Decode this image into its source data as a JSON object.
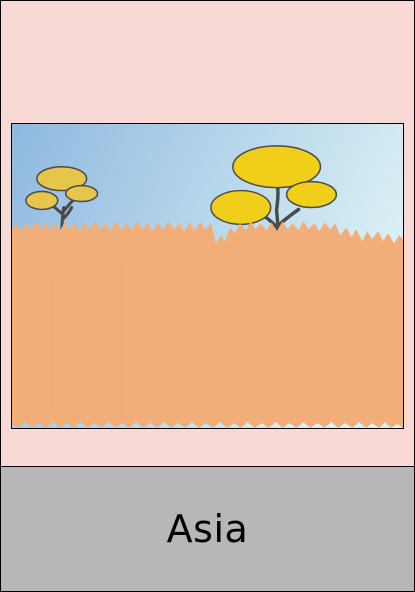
{
  "card": {
    "label": "Asia"
  },
  "scene": {
    "icons": [
      "sky",
      "tree-small-icon",
      "tree-large-icon",
      "grassland"
    ]
  },
  "colors": {
    "card_background": "#f9d9d6",
    "label_background": "#b7b7b7",
    "grass": "#f2ae78",
    "sky_top": "#8fb9e0",
    "sky_bottom": "#d9ecf2",
    "canopy_large": "#f0cf1a",
    "canopy_small": "#e5c54a",
    "trunk": "#4a4a4a"
  }
}
